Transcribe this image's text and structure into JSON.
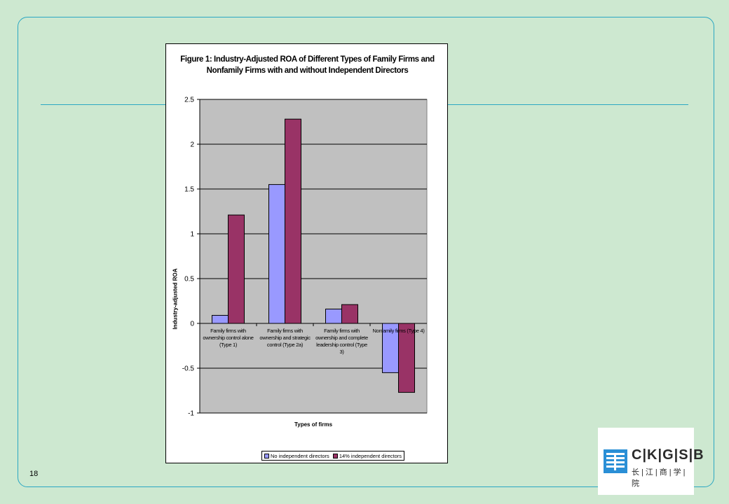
{
  "slide": {
    "page_number": "18",
    "logo_text": "C|K|G|S|B",
    "logo_subtext": "长|江|商|学|院"
  },
  "colors": {
    "background": "#cde8d0",
    "accent_line": "#2aa7c2",
    "plot_area": "#c0c0c0",
    "series_1": "#9999ff",
    "series_2": "#993366",
    "logo_blue": "#2a8fd6"
  },
  "chart_data": {
    "type": "bar",
    "title": "Figure 1: Industry-Adjusted ROA of Different Types of Family Firms and Nonfamily Firms with and without Independent Directors",
    "xlabel": "Types of firms",
    "ylabel": "Industry-adjusted ROA",
    "ylim": [
      -1,
      2.5
    ],
    "yticks": [
      -1,
      -0.5,
      0,
      0.5,
      1,
      1.5,
      2,
      2.5
    ],
    "ytick_labels": [
      "-1",
      "-0.5",
      "0",
      "0.5",
      "1",
      "1.5",
      "2",
      "2.5"
    ],
    "grid": true,
    "legend_position": "bottom",
    "categories": [
      "Family firms with ownership control alone (Type 1)",
      "Family firms with ownership and strategic control (Type 2a)",
      "Family firms with ownership and complete leadership control (Type 3)",
      "Nonfamily firms (Type 4)"
    ],
    "series": [
      {
        "name": "No independent directors",
        "values": [
          0.09,
          1.55,
          0.16,
          -0.55
        ]
      },
      {
        "name": "14% independent directors",
        "values": [
          1.21,
          2.28,
          0.21,
          -0.77
        ]
      }
    ]
  }
}
